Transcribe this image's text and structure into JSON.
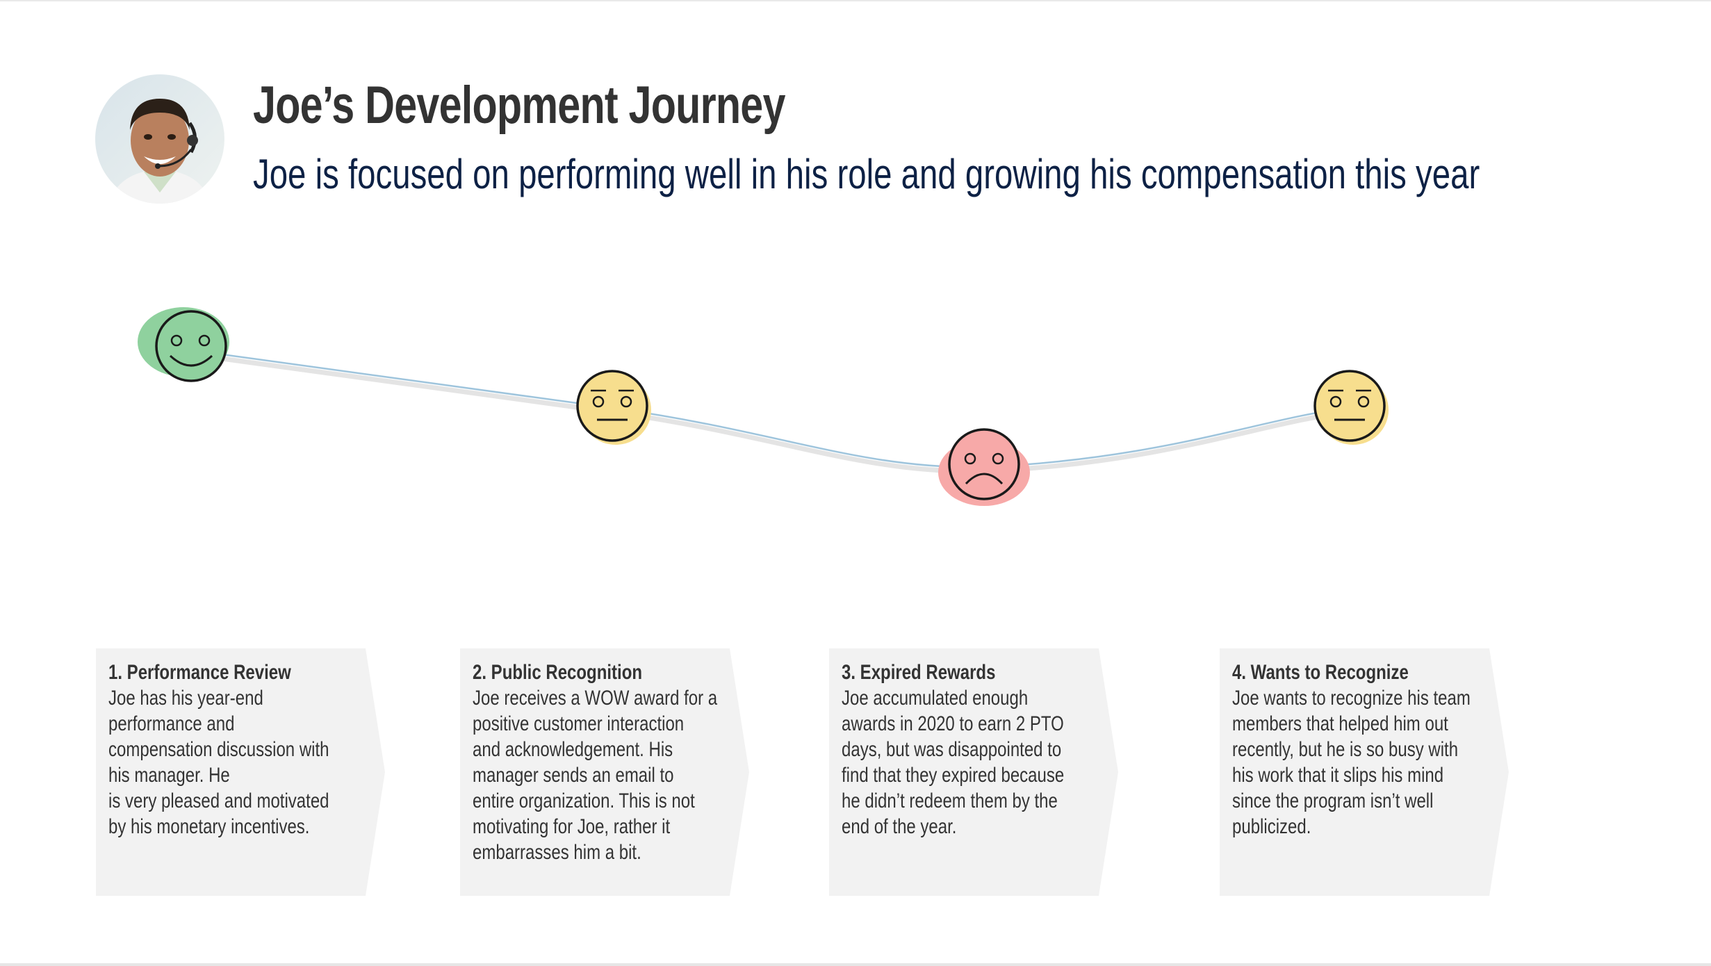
{
  "header": {
    "title": "Joe’s Development Journey",
    "subtitle": "Joe is focused on performing well in his role and growing his compensation this year"
  },
  "colors": {
    "title": "#333333",
    "subtitle": "#0d2145",
    "happy": "#8fd19e",
    "neutral": "#f7de8e",
    "sad": "#f7a9a8",
    "line": "#9ec4dc",
    "card_bg": "#f2f2f2"
  },
  "journey": [
    {
      "mood": "happy"
    },
    {
      "mood": "neutral"
    },
    {
      "mood": "sad"
    },
    {
      "mood": "neutral"
    }
  ],
  "steps": [
    {
      "heading": "1. Performance Review",
      "lines": [
        "Joe has his year-end",
        "performance and",
        "compensation discussion with",
        "his manager. He",
        "is very pleased and motivated",
        "by his monetary incentives."
      ]
    },
    {
      "heading": "2. Public Recognition",
      "lines": [
        "Joe receives a WOW award for a",
        "positive customer interaction",
        "and acknowledgement. His",
        "manager sends an email to",
        "entire organization. This is not",
        "motivating for Joe, rather it",
        "embarrasses him a bit."
      ]
    },
    {
      "heading": "3. Expired Rewards",
      "lines": [
        "Joe accumulated enough",
        "awards in 2020 to earn 2 PTO",
        "days, but was disappointed to",
        "find that they expired because",
        "he didn’t redeem them by the",
        "end of the year."
      ]
    },
    {
      "heading": "4. Wants to Recognize",
      "lines": [
        "Joe wants to recognize his team",
        "members that helped him out",
        "recently, but he is so busy with",
        "his work that it slips his mind",
        "since the program isn’t well",
        "publicized."
      ]
    }
  ]
}
